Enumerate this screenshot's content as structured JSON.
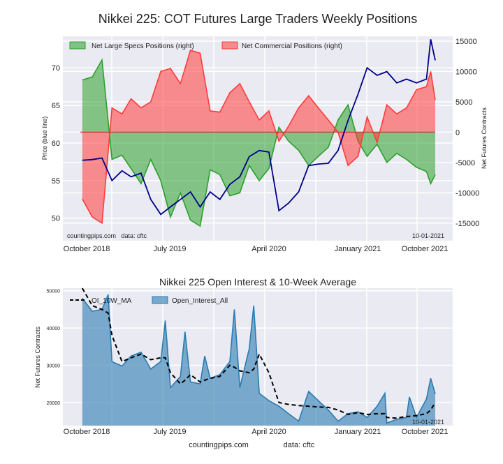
{
  "chart_data": [
    {
      "type": "area",
      "title": "Nikkei 225: COT Futures Large Traders Weekly Positions",
      "ylabel_left": "Price (blue line)",
      "ylabel_right": "Net Futures Contracts",
      "ylim_left": [
        47,
        74.2
      ],
      "ylim_right": [
        -17900,
        15800
      ],
      "yticks_left": [
        "70",
        "65",
        "60",
        "55",
        "50"
      ],
      "yticks_right": [
        "15000",
        "10000",
        "5000",
        "0",
        "-5000",
        "-10000",
        "-15000"
      ],
      "xticks": [
        "October 2018",
        "July 2019",
        "April 2020",
        "January 2021",
        "October 2021"
      ],
      "grid": true,
      "legend_position": "top-left",
      "watermark": "countingpips.com   data: cftc",
      "date_note": "10-01-2021",
      "colors": {
        "price": "#00008b",
        "specs": "#2ca02c",
        "commercial": "#ff3b3b",
        "background": "#eaeaf2"
      },
      "x": [
        "2018-10-01",
        "2018-11-01",
        "2018-12-01",
        "2019-01-01",
        "2019-02-01",
        "2019-03-01",
        "2019-04-01",
        "2019-05-01",
        "2019-06-01",
        "2019-07-01",
        "2019-08-01",
        "2019-09-01",
        "2019-10-01",
        "2019-11-01",
        "2019-12-01",
        "2020-01-01",
        "2020-02-01",
        "2020-03-01",
        "2020-04-01",
        "2020-05-01",
        "2020-06-01",
        "2020-07-01",
        "2020-08-01",
        "2020-09-01",
        "2020-10-01",
        "2020-11-01",
        "2020-12-01",
        "2021-01-01",
        "2021-02-01",
        "2021-03-01",
        "2021-04-01",
        "2021-05-01",
        "2021-06-01",
        "2021-07-01",
        "2021-08-01",
        "2021-09-01",
        "2021-09-14",
        "2021-09-28"
      ],
      "series": [
        {
          "name": "Net Large Specs Positions (right)",
          "axis": "right",
          "values": [
            8600,
            9100,
            11900,
            -4500,
            -3800,
            -6000,
            -8500,
            -4500,
            -8000,
            -14000,
            -10000,
            -14500,
            -15500,
            -6200,
            -7000,
            -10500,
            -10000,
            -5500,
            -8000,
            -6000,
            800,
            -1500,
            -3000,
            -5500,
            -4000,
            -2500,
            2000,
            4500,
            -1500,
            -4000,
            -2000,
            -5000,
            -3500,
            -4500,
            -5800,
            -6500,
            -8500,
            -7000
          ]
        },
        {
          "name": "Net Commercial Positions (right)",
          "axis": "right",
          "values": [
            -11000,
            -14000,
            -15000,
            4000,
            3000,
            5500,
            4000,
            5000,
            10000,
            10500,
            8000,
            13500,
            13000,
            3500,
            3300,
            6500,
            8000,
            5000,
            2000,
            3500,
            -1500,
            1000,
            4000,
            6000,
            4000,
            2000,
            0,
            -5500,
            -4000,
            2500,
            -1700,
            4500,
            3000,
            4000,
            7000,
            7500,
            10000,
            5300
          ]
        },
        {
          "axis": "left",
          "values": [
            57.7,
            57.8,
            58,
            55,
            56.3,
            55.5,
            56,
            52.5,
            50.5,
            51.5,
            52.5,
            53.5,
            51.5,
            53.5,
            52.5,
            54.5,
            55.5,
            58.2,
            59,
            58.8,
            51,
            52,
            53.5,
            57,
            57.2,
            57.3,
            59,
            63,
            66.5,
            70,
            69,
            69.5,
            68,
            68.5,
            68,
            68.5,
            73.8,
            71
          ]
        }
      ]
    },
    {
      "type": "area",
      "title": "Nikkei 225 Open Interest & 10-Week Average",
      "ylabel": "Net Futures Contracts",
      "ylim": [
        13800,
        50700
      ],
      "yticks": [
        "50000",
        "40000",
        "30000",
        "20000"
      ],
      "xticks": [
        "October 2018",
        "July 2019",
        "April 2020",
        "January 2021",
        "October 2021"
      ],
      "grid": true,
      "legend_position": "top-left",
      "date_note": "10-01-2021",
      "colors": {
        "oi": "#2b7bb0",
        "ma": "#000000"
      },
      "x": [
        "2018-10-01",
        "2018-11-01",
        "2018-12-01",
        "2018-12-20",
        "2019-01-01",
        "2019-02-01",
        "2019-03-01",
        "2019-04-01",
        "2019-05-01",
        "2019-06-01",
        "2019-06-15",
        "2019-07-01",
        "2019-08-01",
        "2019-08-15",
        "2019-09-01",
        "2019-10-01",
        "2019-10-15",
        "2019-11-01",
        "2019-12-01",
        "2020-01-01",
        "2020-01-15",
        "2020-02-01",
        "2020-03-01",
        "2020-03-15",
        "2020-04-01",
        "2020-05-01",
        "2020-06-01",
        "2020-07-01",
        "2020-08-01",
        "2020-09-01",
        "2020-10-01",
        "2020-11-01",
        "2020-12-01",
        "2021-01-01",
        "2021-02-01",
        "2021-03-01",
        "2021-04-01",
        "2021-04-25",
        "2021-05-01",
        "2021-06-01",
        "2021-07-01",
        "2021-07-10",
        "2021-08-01",
        "2021-09-01",
        "2021-09-14",
        "2021-09-28"
      ],
      "series": [
        {
          "name": "OI_10W_MA",
          "style": "dashed",
          "values": [
            52000,
            46000,
            45000,
            44000,
            38000,
            31000,
            32000,
            33000,
            31500,
            32000,
            32000,
            28000,
            25000,
            26000,
            27500,
            25500,
            26000,
            26500,
            27000,
            30000,
            29500,
            28500,
            28000,
            29000,
            33000,
            28000,
            20000,
            19500,
            19200,
            19000,
            18800,
            18700,
            18000,
            16800,
            17300,
            16800,
            17000,
            17000,
            16000,
            15800,
            16300,
            16300,
            16500,
            17000,
            18000,
            20000
          ]
        },
        {
          "name": "Open_Interest_All",
          "style": "area",
          "values": [
            48000,
            44500,
            45000,
            49000,
            31000,
            29800,
            32500,
            33500,
            29000,
            31000,
            42000,
            24000,
            27000,
            39000,
            25500,
            25000,
            32500,
            26500,
            27500,
            31000,
            45000,
            24000,
            34500,
            46000,
            22500,
            20500,
            19000,
            17000,
            15000,
            23000,
            20500,
            18000,
            15000,
            17000,
            17500,
            16000,
            19000,
            22500,
            14500,
            15500,
            16000,
            21500,
            16000,
            21000,
            26500,
            22300
          ]
        }
      ]
    }
  ],
  "footer": {
    "site": "countingpips.com",
    "data_source": "data: cftc"
  }
}
